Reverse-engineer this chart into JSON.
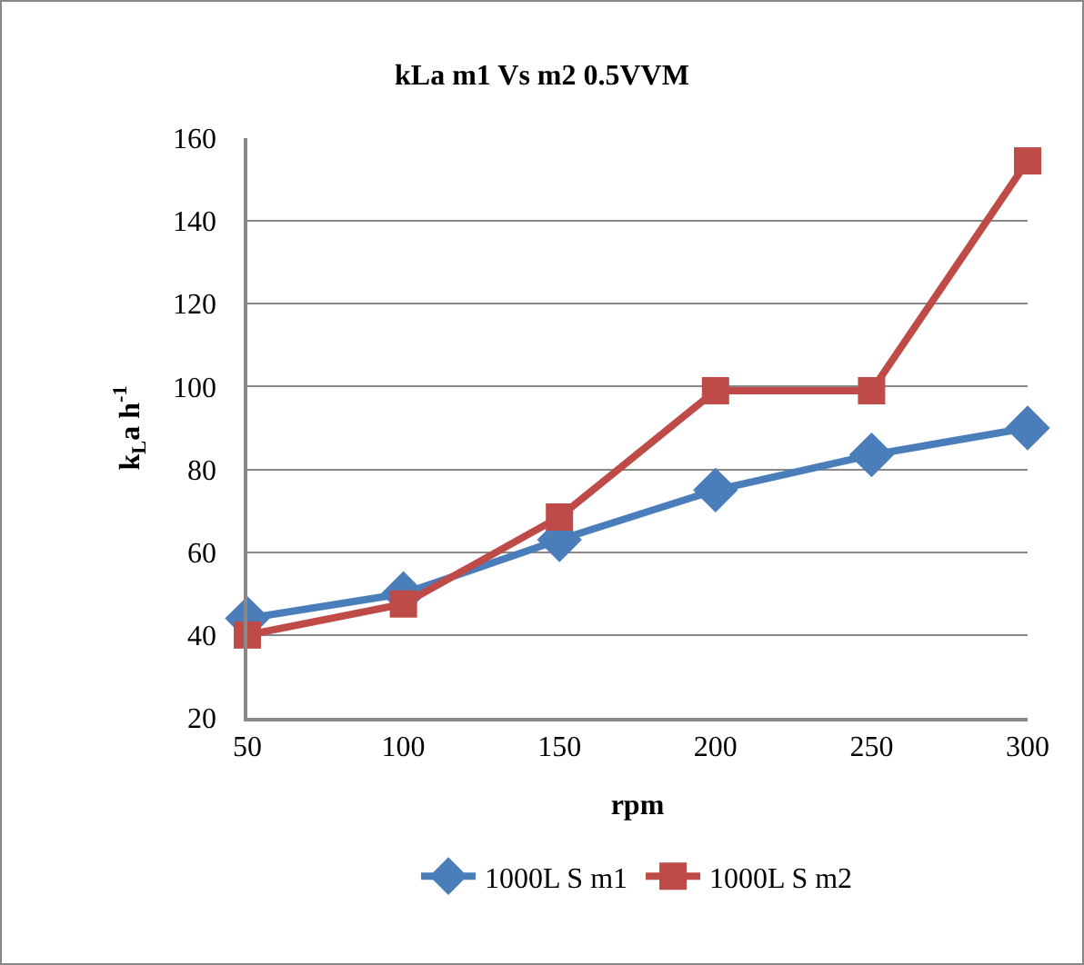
{
  "chart_data": {
    "type": "line",
    "title": "kLa m1 Vs m2 0.5VVM",
    "xlabel": "rpm",
    "ylabel": "k$_{L}$a h$^{-1}$",
    "categories": [
      "50",
      "100",
      "150",
      "200",
      "250",
      "300"
    ],
    "series": [
      {
        "name": "1000L S m1",
        "color": "#4a7ebb",
        "marker": "diamond",
        "values": [
          44,
          50,
          63,
          75,
          83.5,
          90
        ]
      },
      {
        "name": "1000L S m2",
        "color": "#be4b48",
        "marker": "square",
        "values": [
          40,
          47.5,
          68.5,
          99,
          99,
          154.5
        ]
      }
    ],
    "ylim": [
      20,
      160
    ],
    "yticks": [
      20,
      40,
      60,
      80,
      100,
      120,
      140,
      160
    ],
    "grid": "y",
    "legend": "bottom",
    "line_style": "solid"
  }
}
